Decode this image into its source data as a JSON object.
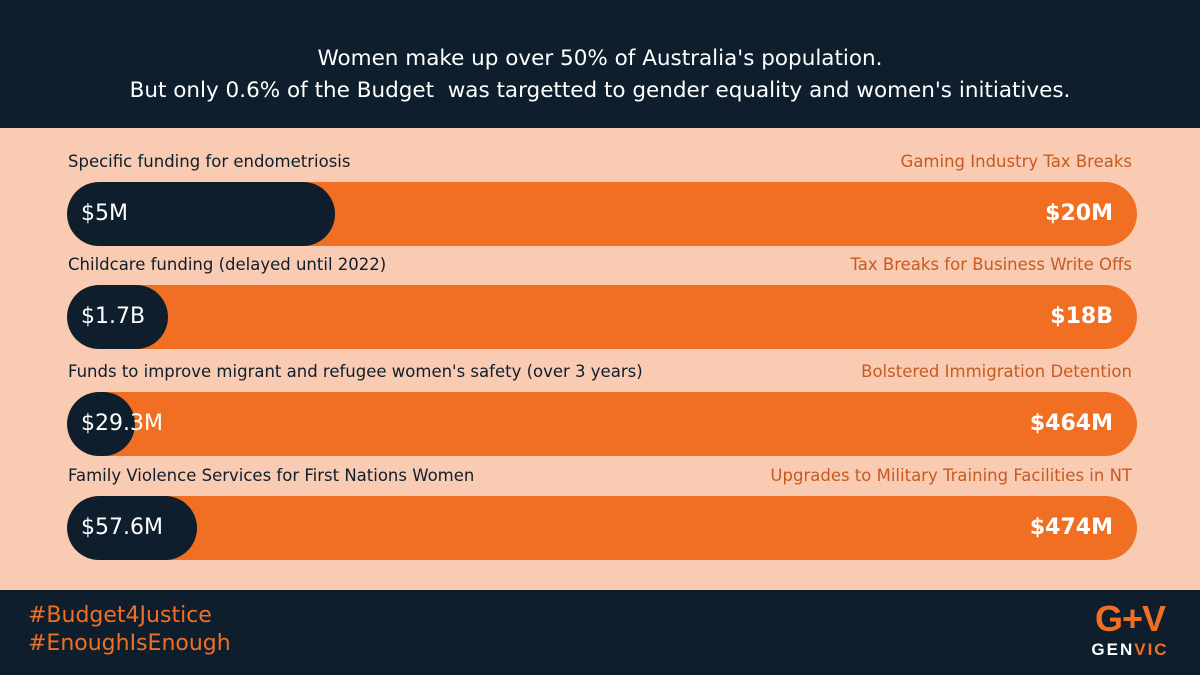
{
  "header": {
    "line1": "Women make up over 50% of Australia's population.",
    "line2": "But only 0.6% of the Budget  was targetted to gender equality and women's initiatives."
  },
  "chart_data": {
    "type": "bar",
    "rows": [
      {
        "left_label": "Specific funding for endometriosis",
        "right_label": "Gaming Industry Tax Breaks",
        "left_value_text": "$5M",
        "right_value_text": "$20M",
        "left_value": 5,
        "right_value": 20,
        "unit": "M"
      },
      {
        "left_label": "Childcare funding (delayed until 2022)",
        "right_label": "Tax Breaks for Business Write Offs",
        "left_value_text": "$1.7B",
        "right_value_text": "$18B",
        "left_value": 1.7,
        "right_value": 18,
        "unit": "B"
      },
      {
        "left_label": "Funds to improve migrant and refugee women's safety (over 3 years)",
        "right_label": "Bolstered Immigration Detention",
        "left_value_text": "$29.3M",
        "right_value_text": "$464M",
        "left_value": 29.3,
        "right_value": 464,
        "unit": "M"
      },
      {
        "left_label": "Family Violence Services for First Nations Women",
        "right_label": "Upgrades to Military Training Facilities in NT",
        "left_value_text": "$57.6M",
        "right_value_text": "$474M",
        "left_value": 57.6,
        "right_value": 474,
        "unit": "M"
      }
    ]
  },
  "footer": {
    "hashtag1": "#Budget4Justice",
    "hashtag2": "#EnoughIsEnough",
    "logo_mark": "G+V",
    "logo_word_gen": "GEN",
    "logo_word_vic": "VIC"
  },
  "colors": {
    "navy": "#0e1e2c",
    "orange": "#f16f22",
    "peach": "#f9cbb3",
    "label_orange": "#c85a1f"
  }
}
